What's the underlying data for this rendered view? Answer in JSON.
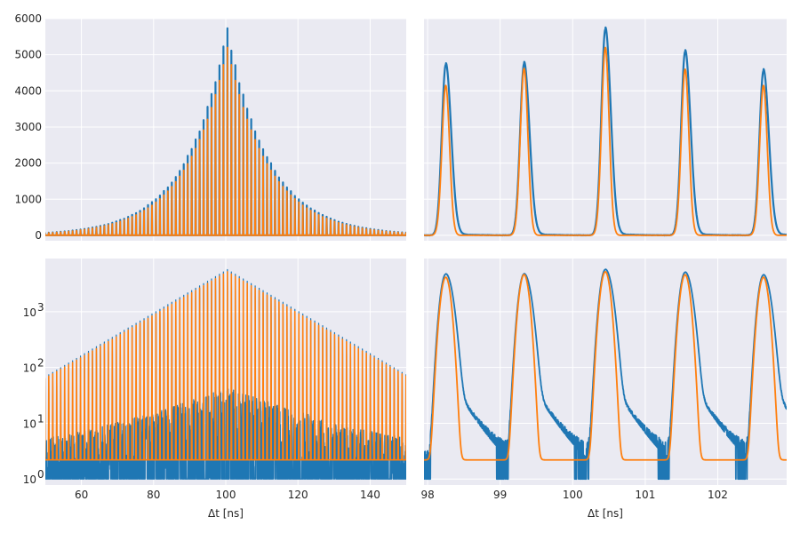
{
  "colors": {
    "measured": "#1f77b4",
    "model": "#ff7f0e",
    "panel_bg": "#eaeaf2",
    "grid": "#ffffff"
  },
  "chart_data": [
    {
      "type": "line",
      "panel": "top-left",
      "xlabel": "",
      "ylabel": "",
      "xlim": [
        50,
        150
      ],
      "ylim": [
        -150,
        6000
      ],
      "yscale": "linear",
      "grid": true,
      "x_ticks": [
        60,
        80,
        100,
        120,
        140
      ],
      "y_ticks": [
        0,
        1000,
        2000,
        3000,
        4000,
        5000,
        6000
      ],
      "x_ticklabels": [],
      "y_ticklabels": [
        "0",
        "1000",
        "2000",
        "3000",
        "4000",
        "5000",
        "6000"
      ],
      "pulse_period": 1.1,
      "pulse_center": 100.45,
      "series": [
        {
          "role": "measured",
          "peak": 5700,
          "decay_ns": 11.4,
          "baseline": 2
        },
        {
          "role": "model",
          "peak": 5200,
          "decay_ns": 11.4,
          "baseline": 2
        }
      ]
    },
    {
      "type": "line",
      "panel": "top-right",
      "xlabel": "",
      "ylabel": "",
      "xlim": [
        97.95,
        102.95
      ],
      "ylim": [
        -150,
        6000
      ],
      "yscale": "linear",
      "grid": true,
      "x_ticks": [
        98,
        99,
        100,
        101,
        102
      ],
      "y_ticks": [
        0,
        1000,
        2000,
        3000,
        4000,
        5000,
        6000
      ],
      "x_ticklabels": [],
      "y_ticklabels": [],
      "peaks": [
        {
          "x": 98.25,
          "measured": 4720,
          "model": 4150
        },
        {
          "x": 99.33,
          "measured": 4750,
          "model": 4620
        },
        {
          "x": 100.45,
          "measured": 5700,
          "model": 5200
        },
        {
          "x": 101.55,
          "measured": 5080,
          "model": 4600
        },
        {
          "x": 102.63,
          "measured": 4550,
          "model": 4150
        }
      ],
      "peak_width_ns": 0.055
    },
    {
      "type": "line",
      "panel": "bottom-left",
      "xlabel": "Δt [ns]",
      "ylabel": "",
      "xlim": [
        50,
        150
      ],
      "ylim": [
        0.78,
        9000
      ],
      "yscale": "log",
      "grid": true,
      "x_ticks": [
        60,
        80,
        100,
        120,
        140
      ],
      "x_ticklabels": [
        "60",
        "80",
        "100",
        "120",
        "140"
      ],
      "y_ticks": [
        1,
        10,
        100,
        1000
      ],
      "y_tick_bases": [
        "10",
        "10",
        "10",
        "10"
      ],
      "y_tick_exponents": [
        "0",
        "1",
        "2",
        "3"
      ],
      "model_floor": 2.2,
      "series": [
        {
          "role": "measured",
          "peak": 5700
        },
        {
          "role": "model",
          "peak": 5200
        }
      ]
    },
    {
      "type": "line",
      "panel": "bottom-right",
      "xlabel": "Δt [ns]",
      "ylabel": "",
      "xlim": [
        97.95,
        102.95
      ],
      "ylim": [
        0.78,
        9000
      ],
      "yscale": "log",
      "grid": true,
      "x_ticks": [
        98,
        99,
        100,
        101,
        102
      ],
      "x_ticklabels": [
        "98",
        "99",
        "100",
        "101",
        "102"
      ],
      "y_ticks": [
        1,
        10,
        100,
        1000
      ],
      "y_ticklabels": [],
      "model_floor": 2.2
    }
  ]
}
